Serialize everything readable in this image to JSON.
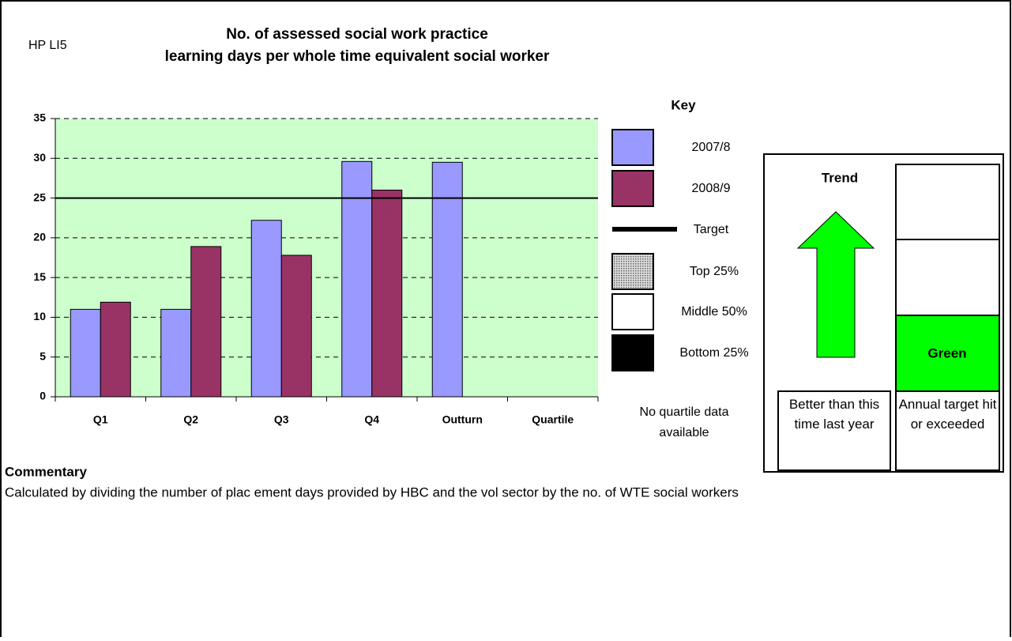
{
  "header": {
    "code": "HP LI5"
  },
  "chart_data": {
    "type": "bar",
    "title": "No. of assessed social work practice learning days per whole time equivalent social worker",
    "categories": [
      "Q1",
      "Q2",
      "Q3",
      "Q4",
      "Outturn",
      "Quartile"
    ],
    "series": [
      {
        "name": "2007/8",
        "color": "#9999ff",
        "values": [
          11,
          11,
          22.2,
          29.6,
          29.5,
          null
        ]
      },
      {
        "name": "2008/9",
        "color": "#993366",
        "values": [
          11.9,
          18.9,
          17.8,
          26,
          null,
          null
        ]
      }
    ],
    "target": 25,
    "target_name": "Target",
    "target_color": "#000000",
    "ylim": [
      0,
      35
    ],
    "yticks": [
      0,
      5,
      10,
      15,
      20,
      25,
      30,
      35
    ],
    "grid": true,
    "plot_background": "#ccffcc",
    "key_title": "Key",
    "quartile_key": [
      {
        "name": "Top 25%",
        "color": "#999999"
      },
      {
        "name": "Middle 50%",
        "color": "#ffffff"
      },
      {
        "name": "Bottom 25%",
        "color": "#000000"
      }
    ],
    "quartile_note": "No quartile data available"
  },
  "status": {
    "trend_title": "Trend",
    "trend_text": "Better than this time last year",
    "rating": "Green",
    "rating_text": "Annual target hit or exceeded"
  },
  "commentary": {
    "title": "Commentary",
    "text": "Calculated by dividing the number of plac ement days provided by HBC and the vol sector by the no. of WTE social workers"
  }
}
